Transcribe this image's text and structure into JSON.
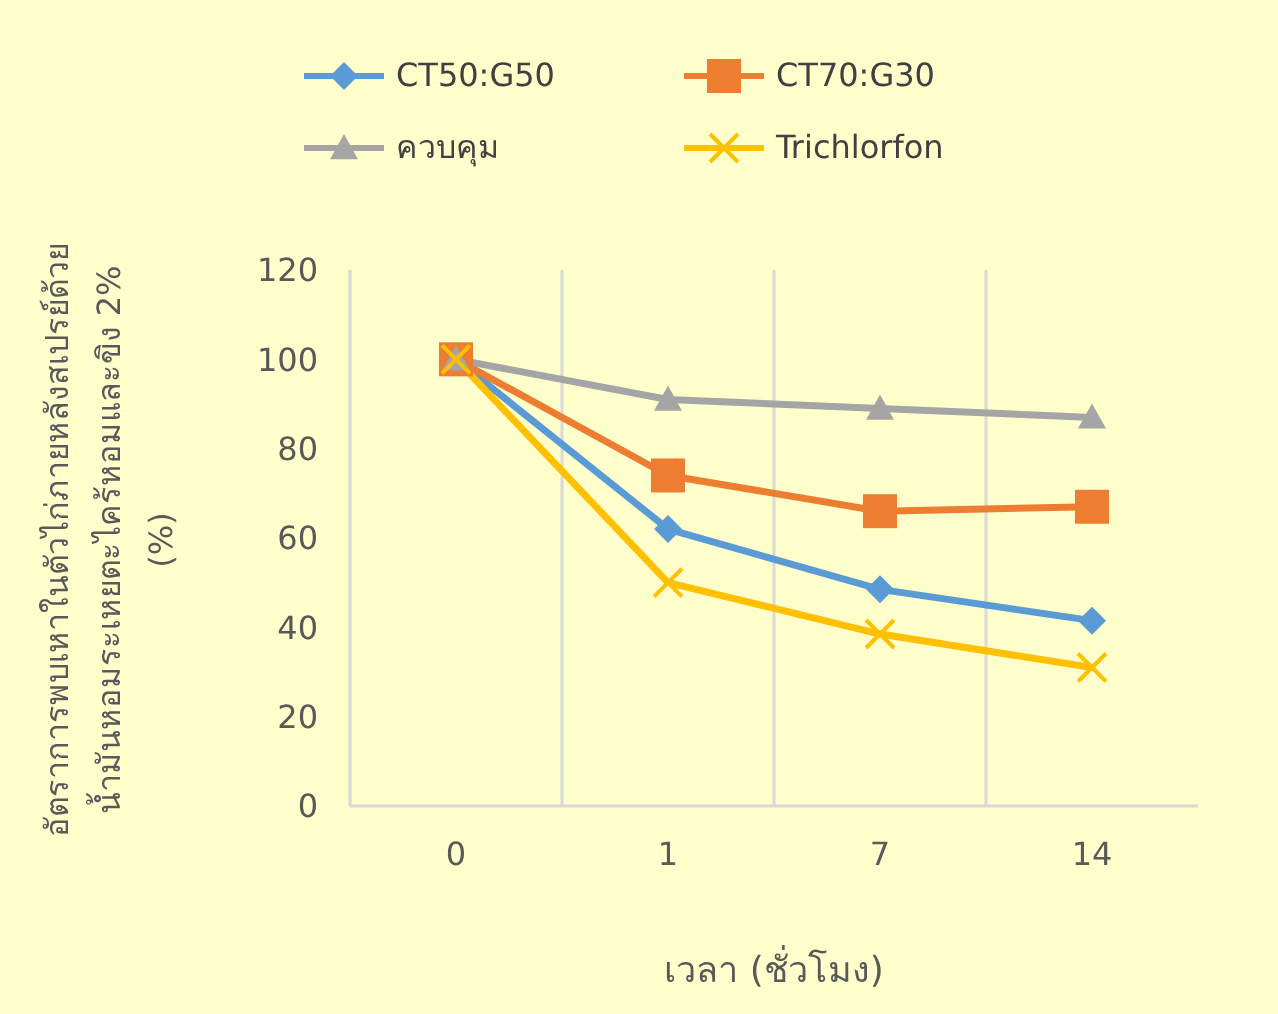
{
  "chart_data": {
    "type": "line",
    "xlabel": "เวลา (ชั่วโมง)",
    "ylabel": "อัตราการพบเหาในตัวไก่ภายหลังสเปรย์ด้วยน้ำมันหอมระเหยตะไคร้หอมและขิง 2% (%)",
    "categories": [
      "0",
      "1",
      "7",
      "14"
    ],
    "series": [
      {
        "name": "CT50:G50",
        "color": "#5b9bd5",
        "marker": "diamond",
        "values": [
          100,
          62,
          48.5,
          41.5
        ]
      },
      {
        "name": "CT70:G30",
        "color": "#ed7d31",
        "marker": "square",
        "values": [
          100,
          74,
          66,
          67
        ]
      },
      {
        "name": "ควบคุม",
        "color": "#a5a5a5",
        "marker": "triangle",
        "values": [
          100,
          91,
          89,
          87
        ]
      },
      {
        "name": "Trichlorfon",
        "color": "#ffc000",
        "marker": "cross",
        "values": [
          100,
          50,
          38.5,
          31
        ]
      }
    ],
    "ylim": [
      0,
      120
    ],
    "yticks": [
      0,
      20,
      40,
      60,
      80,
      100,
      120
    ],
    "grid": "x",
    "legend": "top"
  }
}
